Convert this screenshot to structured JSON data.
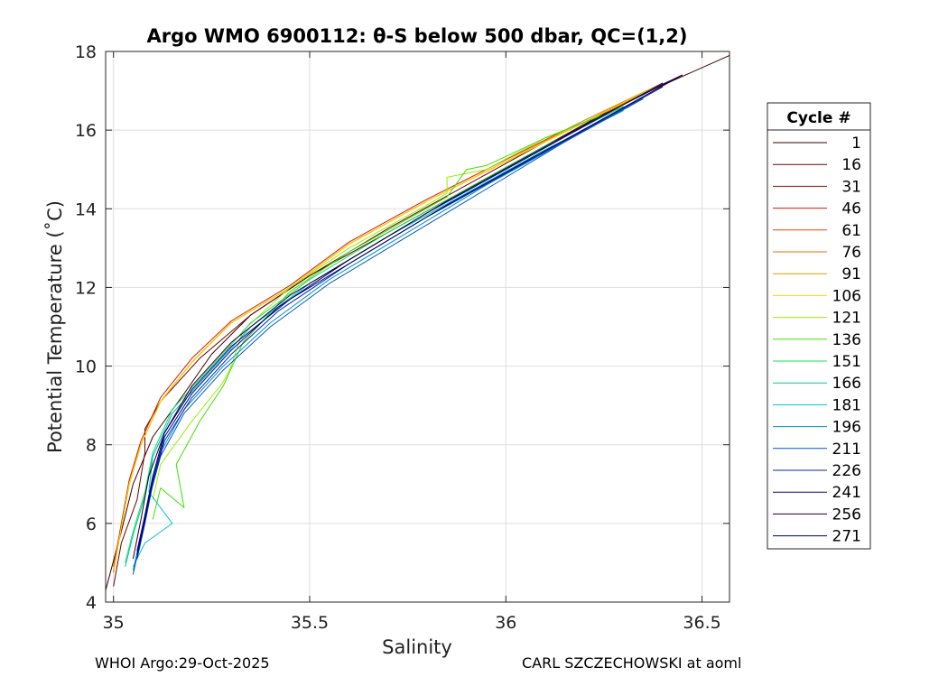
{
  "chart_data": {
    "type": "line",
    "title": "Argo WMO 6900112: θ-S below 500 dbar,  QC=(1,2)",
    "xlabel": "Salinity",
    "ylabel": "Potential Temperature (˚C)",
    "xlim": [
      34.98,
      36.57
    ],
    "ylim": [
      4,
      18
    ],
    "xticks": [
      35,
      35.5,
      36,
      36.5
    ],
    "xtick_labels": [
      "35",
      "35.5",
      "36",
      "36.5"
    ],
    "yticks": [
      4,
      6,
      8,
      10,
      12,
      14,
      16,
      18
    ],
    "ytick_labels": [
      "4",
      "6",
      "8",
      "10",
      "12",
      "14",
      "16",
      "18"
    ],
    "grid": true,
    "legend_placement": "right-outside",
    "legend_title": "Cycle #",
    "legend_entries": [
      "1",
      "16",
      "31",
      "46",
      "61",
      "76",
      "91",
      "106",
      "121",
      "136",
      "151",
      "166",
      "181",
      "196",
      "211",
      "226",
      "241",
      "256",
      "271"
    ],
    "series_colors": [
      "#3a0000",
      "#700000",
      "#a00000",
      "#d41c00",
      "#e84a00",
      "#e07000",
      "#d8a000",
      "#f0e000",
      "#98f000",
      "#40e000",
      "#20d860",
      "#00c8a0",
      "#00c0d8",
      "#0090d0",
      "#0058c0",
      "#0028b0",
      "#000090",
      "#200020",
      "#000060"
    ],
    "series": [
      {
        "x": [
          36.57,
          36.3,
          36.1,
          35.9,
          35.7,
          35.5,
          35.35,
          35.25,
          35.18,
          35.1,
          35.05,
          35.02,
          34.98
        ],
        "y": [
          17.9,
          16.7,
          15.6,
          14.5,
          13.4,
          12.3,
          11.3,
          10.3,
          9.3,
          8.2,
          7.0,
          5.8,
          4.3
        ]
      },
      {
        "x": [
          36.45,
          36.3,
          36.1,
          35.9,
          35.7,
          35.5,
          35.35,
          35.22,
          35.12,
          35.08,
          35.08,
          35.06,
          35.02,
          35.0
        ],
        "y": [
          17.4,
          16.7,
          15.7,
          14.6,
          13.5,
          12.3,
          11.3,
          10.2,
          9.1,
          8.4,
          7.8,
          6.6,
          5.5,
          4.4
        ]
      },
      {
        "x": [
          36.4,
          36.2,
          36.0,
          35.8,
          35.6,
          35.45,
          35.3,
          35.2,
          35.12,
          35.07,
          35.04,
          35.02,
          35.0
        ],
        "y": [
          17.2,
          16.2,
          15.2,
          14.2,
          13.1,
          12.0,
          11.1,
          10.1,
          9.1,
          8.0,
          7.0,
          5.9,
          4.8
        ]
      },
      {
        "x": [
          36.4,
          36.2,
          36.0,
          35.8,
          35.6,
          35.45,
          35.3,
          35.2,
          35.12,
          35.07,
          35.04,
          35.02,
          35.0
        ],
        "y": [
          17.2,
          16.25,
          15.25,
          14.25,
          13.15,
          12.05,
          11.15,
          10.2,
          9.2,
          8.1,
          7.1,
          6.0,
          4.9
        ]
      },
      {
        "x": [
          36.4,
          36.2,
          36.0,
          35.8,
          35.6,
          35.45,
          35.3,
          35.2,
          35.12,
          35.07,
          35.04,
          35.02,
          35.0
        ],
        "y": [
          17.15,
          16.2,
          15.2,
          14.2,
          13.1,
          12.0,
          11.1,
          10.1,
          9.1,
          8.0,
          7.0,
          5.9,
          4.75
        ]
      },
      {
        "x": [
          36.4,
          36.2,
          36.0,
          35.8,
          35.6,
          35.45,
          35.3,
          35.2,
          35.12,
          35.07,
          35.04,
          35.02,
          35.0
        ],
        "y": [
          17.2,
          16.2,
          15.2,
          14.2,
          13.1,
          12.0,
          11.1,
          10.1,
          9.1,
          8.0,
          7.0,
          5.9,
          4.8
        ]
      },
      {
        "x": [
          36.4,
          36.2,
          36.0,
          35.8,
          35.6,
          35.45,
          35.3,
          35.2,
          35.12,
          35.07,
          35.04,
          35.02,
          35.0
        ],
        "y": [
          17.2,
          16.25,
          15.2,
          14.2,
          13.1,
          12.0,
          11.1,
          10.1,
          9.1,
          8.0,
          7.0,
          5.9,
          4.8
        ]
      },
      {
        "x": [
          36.4,
          36.2,
          36.0,
          35.8,
          35.6,
          35.45,
          35.3,
          35.2,
          35.12,
          35.07,
          35.04,
          35.02,
          35.0
        ],
        "y": [
          17.2,
          16.2,
          15.2,
          14.2,
          13.1,
          12.0,
          11.1,
          10.1,
          9.1,
          8.0,
          7.0,
          5.9,
          4.8
        ]
      },
      {
        "x": [
          36.3,
          36.1,
          35.95,
          35.85,
          35.85,
          35.8,
          35.6,
          35.45,
          35.33,
          35.3,
          35.28,
          35.2,
          35.12,
          35.1
        ],
        "y": [
          16.6,
          15.8,
          15.0,
          14.8,
          14.4,
          14.1,
          13.0,
          12.0,
          10.9,
          10.0,
          9.6,
          8.6,
          7.5,
          6.6
        ]
      },
      {
        "x": [
          36.3,
          36.1,
          35.95,
          35.9,
          35.85,
          35.6,
          35.45,
          35.33,
          35.28,
          35.22,
          35.16,
          35.18,
          35.12,
          35.1
        ],
        "y": [
          16.6,
          15.8,
          15.1,
          15.0,
          14.3,
          12.9,
          11.9,
          10.6,
          9.5,
          8.6,
          7.5,
          6.4,
          6.9,
          6.1
        ]
      },
      {
        "x": [
          36.3,
          36.1,
          35.9,
          35.7,
          35.5,
          35.35,
          35.25,
          35.15,
          35.1,
          35.08,
          35.05,
          35.03
        ],
        "y": [
          16.6,
          15.6,
          14.5,
          13.4,
          12.2,
          11.1,
          10.0,
          8.9,
          7.8,
          6.8,
          5.8,
          5.0
        ]
      },
      {
        "x": [
          36.3,
          36.1,
          35.9,
          35.7,
          35.5,
          35.35,
          35.25,
          35.15,
          35.1,
          35.08,
          35.05,
          35.03
        ],
        "y": [
          16.5,
          15.5,
          14.4,
          13.3,
          12.1,
          11.0,
          9.9,
          8.8,
          7.7,
          6.7,
          5.7,
          4.9
        ]
      },
      {
        "x": [
          36.3,
          36.1,
          35.9,
          35.7,
          35.5,
          35.35,
          35.25,
          35.15,
          35.1,
          35.09,
          35.15,
          35.08,
          35.05
        ],
        "y": [
          16.5,
          15.5,
          14.4,
          13.3,
          12.1,
          11.0,
          9.9,
          8.8,
          7.7,
          6.8,
          6.0,
          5.5,
          4.9
        ]
      },
      {
        "x": [
          36.35,
          36.15,
          35.95,
          35.75,
          35.55,
          35.4,
          35.28,
          35.18,
          35.12,
          35.09,
          35.07,
          35.05
        ],
        "y": [
          16.8,
          15.7,
          14.6,
          13.4,
          12.2,
          11.1,
          10.0,
          8.9,
          7.8,
          6.7,
          5.7,
          4.8
        ]
      },
      {
        "x": [
          36.35,
          36.15,
          35.95,
          35.75,
          35.55,
          35.4,
          35.28,
          35.18,
          35.12,
          35.09,
          35.07,
          35.05
        ],
        "y": [
          16.8,
          15.7,
          14.5,
          13.3,
          12.1,
          11.0,
          9.9,
          8.8,
          7.7,
          6.6,
          5.6,
          4.7
        ]
      },
      {
        "x": [
          36.4,
          36.2,
          36.0,
          35.8,
          35.6,
          35.42,
          35.3,
          35.2,
          35.13,
          35.1,
          35.08,
          35.06
        ],
        "y": [
          17.1,
          16.0,
          14.9,
          13.8,
          12.6,
          11.4,
          10.3,
          9.2,
          8.1,
          7.0,
          6.0,
          5.1
        ]
      },
      {
        "x": [
          36.4,
          36.2,
          36.0,
          35.8,
          35.6,
          35.42,
          35.3,
          35.2,
          35.13,
          35.1,
          35.08,
          35.06
        ],
        "y": [
          17.2,
          16.1,
          15.0,
          13.9,
          12.7,
          11.5,
          10.4,
          9.3,
          8.2,
          7.1,
          6.1,
          5.2
        ]
      },
      {
        "x": [
          36.45,
          36.25,
          36.05,
          35.85,
          35.65,
          35.45,
          35.3,
          35.2,
          35.13,
          35.09,
          35.07,
          35.05
        ],
        "y": [
          17.4,
          16.4,
          15.3,
          14.2,
          13.0,
          11.8,
          10.6,
          9.5,
          8.3,
          7.2,
          6.1,
          5.1
        ]
      },
      {
        "x": [
          36.45,
          36.25,
          36.05,
          35.85,
          35.65,
          35.45,
          35.3,
          35.2,
          35.13,
          35.1,
          35.08,
          35.06
        ],
        "y": [
          17.4,
          16.3,
          15.2,
          14.1,
          12.9,
          11.7,
          10.5,
          9.4,
          8.3,
          7.2,
          6.2,
          5.3
        ]
      }
    ]
  },
  "footer": {
    "left": "WHOI Argo:29-Oct-2025",
    "right": "CARL SZCZECHOWSKI at aoml"
  }
}
